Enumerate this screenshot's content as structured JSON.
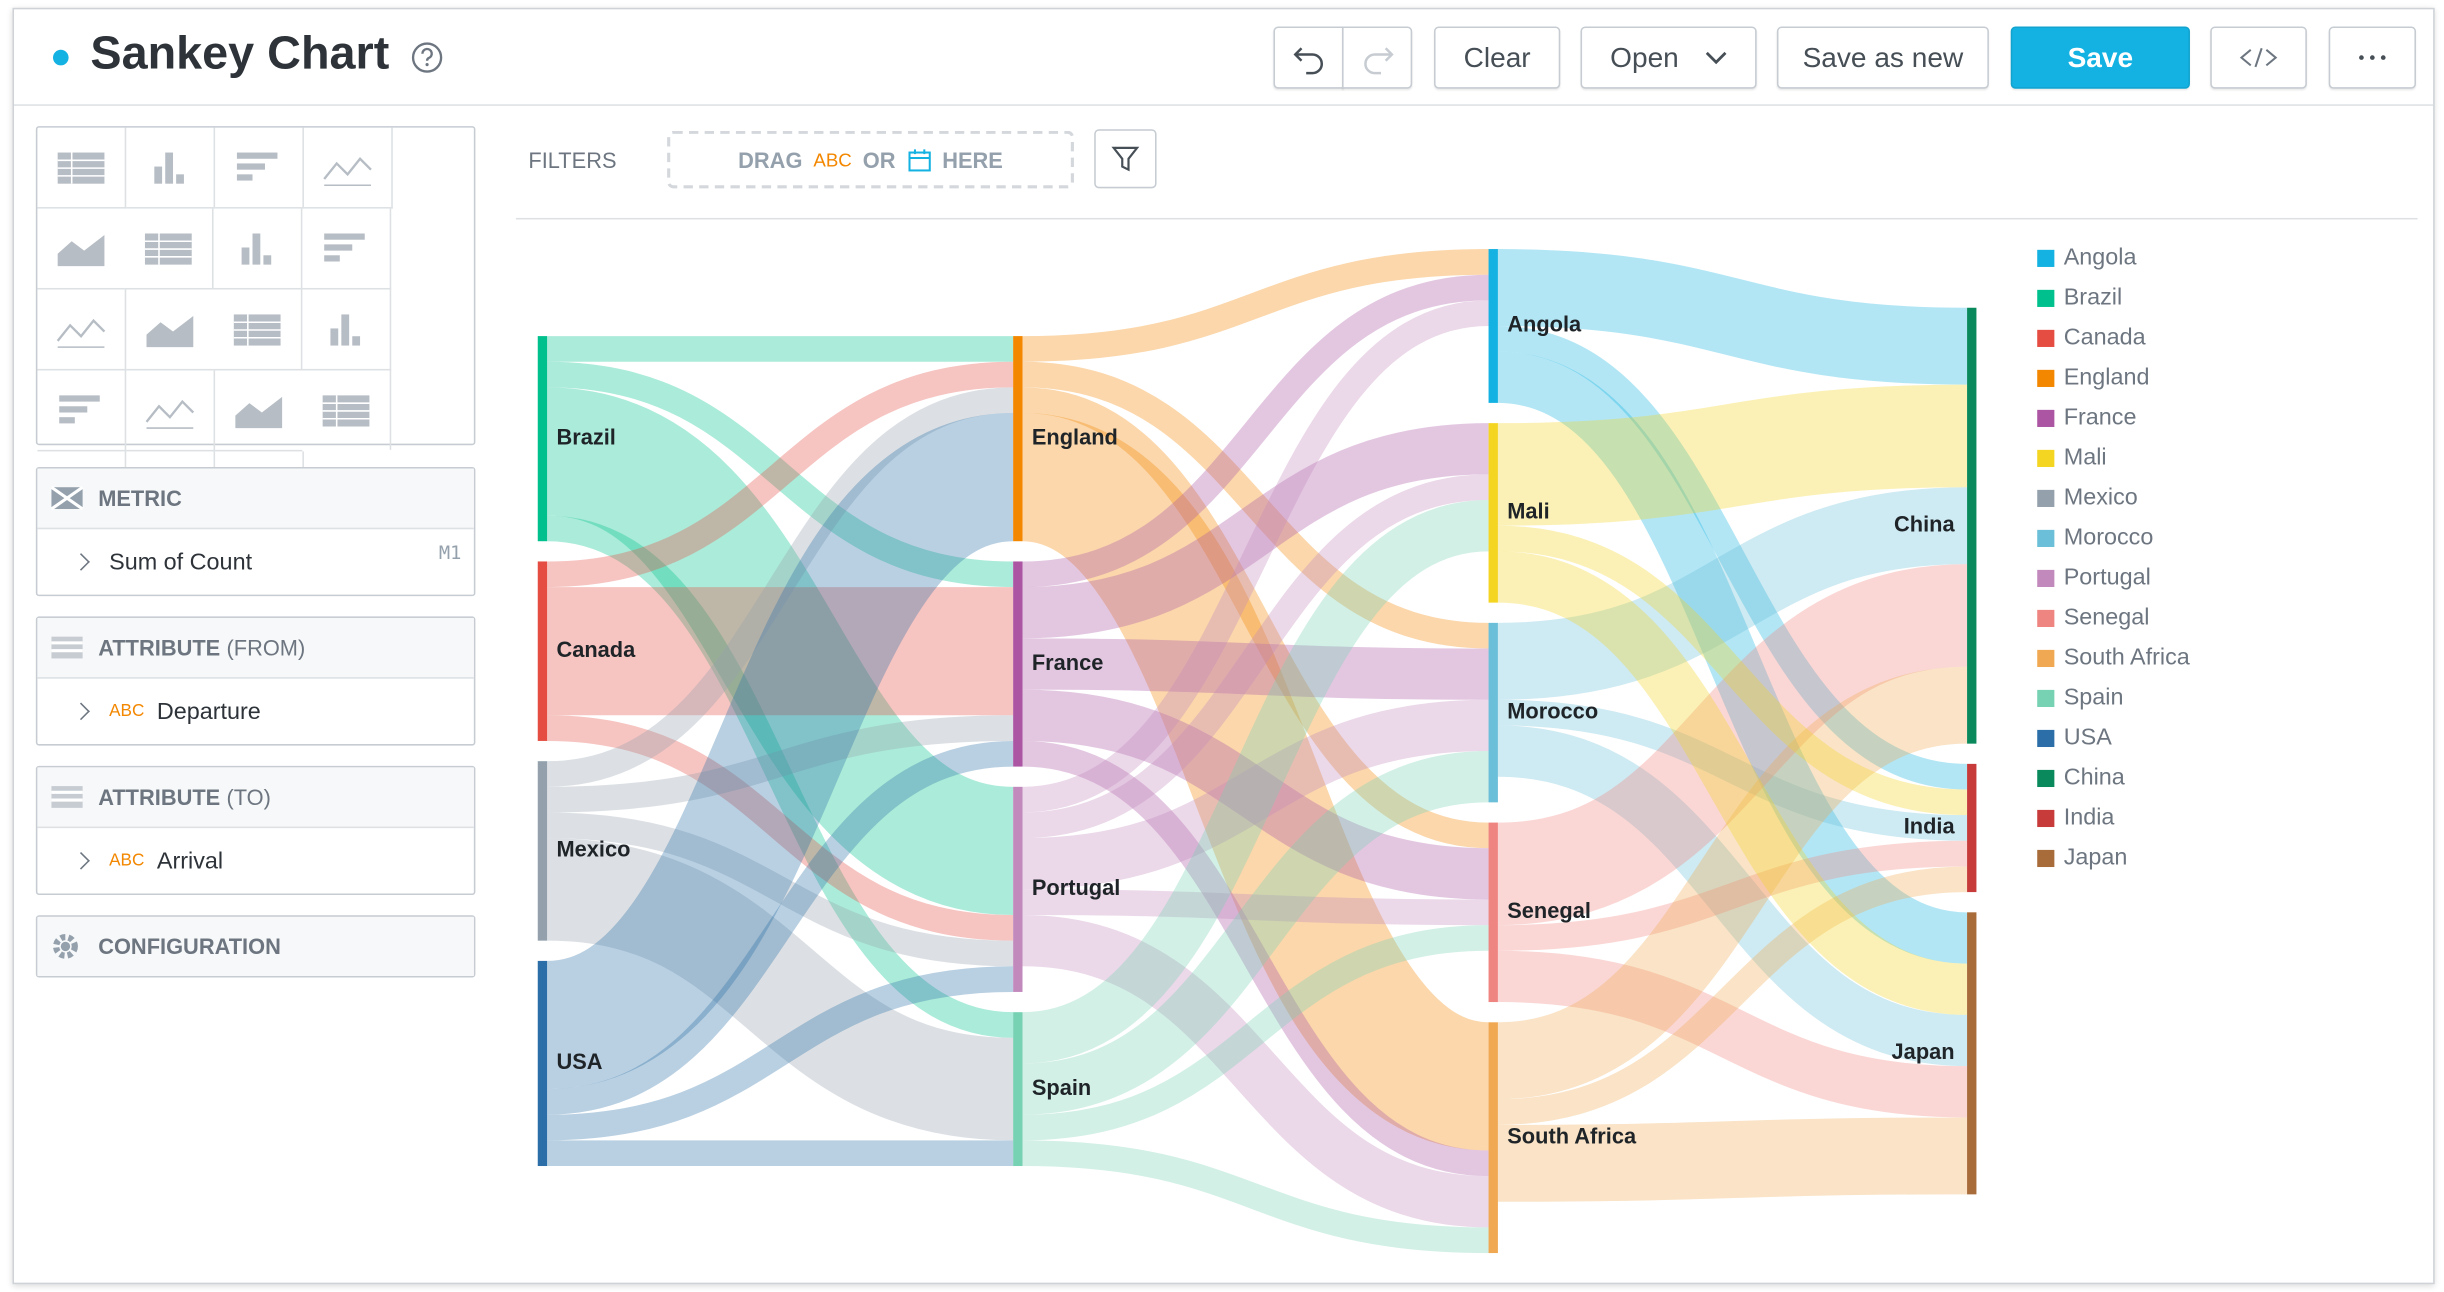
{
  "header": {
    "title": "Sankey Chart",
    "buttons": {
      "clear": "Clear",
      "open": "Open",
      "save_as_new": "Save as new",
      "save": "Save"
    }
  },
  "sidebar": {
    "metric": {
      "title": "METRIC",
      "item": "Sum of Count",
      "tag": "M1"
    },
    "from": {
      "title": "ATTRIBUTE",
      "qualifier": "(FROM)",
      "type": "ABC",
      "item": "Departure"
    },
    "to": {
      "title": "ATTRIBUTE",
      "qualifier": "(TO)",
      "type": "ABC",
      "item": "Arrival"
    },
    "configuration": "CONFIGURATION"
  },
  "filters": {
    "label": "FILTERS",
    "drag": "DRAG",
    "abc": "ABC",
    "or": "OR",
    "here": "HERE"
  },
  "chart_data": {
    "type": "sankey",
    "nodes": [
      {
        "name": "Angola",
        "color": "#14b2e2"
      },
      {
        "name": "Brazil",
        "color": "#00c18d"
      },
      {
        "name": "Canada",
        "color": "#e54d42"
      },
      {
        "name": "England",
        "color": "#f38700"
      },
      {
        "name": "France",
        "color": "#ab55a3"
      },
      {
        "name": "Mali",
        "color": "#f4d521"
      },
      {
        "name": "Mexico",
        "color": "#94a1ad"
      },
      {
        "name": "Morocco",
        "color": "#6bbfd8"
      },
      {
        "name": "Portugal",
        "color": "#c289bd"
      },
      {
        "name": "Senegal",
        "color": "#ef8581"
      },
      {
        "name": "South Africa",
        "color": "#f0a952"
      },
      {
        "name": "Spain",
        "color": "#77d1b3"
      },
      {
        "name": "USA",
        "color": "#2c6fa8"
      },
      {
        "name": "China",
        "color": "#0a8a5c"
      },
      {
        "name": "India",
        "color": "#c73b3b"
      },
      {
        "name": "Japan",
        "color": "#a86b3a"
      }
    ],
    "links": [
      {
        "source": "Brazil",
        "target": "England",
        "value": 1
      },
      {
        "source": "Brazil",
        "target": "France",
        "value": 1
      },
      {
        "source": "Brazil",
        "target": "Portugal",
        "value": 5
      },
      {
        "source": "Brazil",
        "target": "Spain",
        "value": 1
      },
      {
        "source": "Canada",
        "target": "England",
        "value": 1
      },
      {
        "source": "Canada",
        "target": "France",
        "value": 5
      },
      {
        "source": "Canada",
        "target": "Portugal",
        "value": 1
      },
      {
        "source": "Mexico",
        "target": "England",
        "value": 1
      },
      {
        "source": "Mexico",
        "target": "France",
        "value": 1
      },
      {
        "source": "Mexico",
        "target": "Portugal",
        "value": 1
      },
      {
        "source": "Mexico",
        "target": "Spain",
        "value": 4
      },
      {
        "source": "USA",
        "target": "England",
        "value": 5
      },
      {
        "source": "USA",
        "target": "France",
        "value": 1
      },
      {
        "source": "USA",
        "target": "Portugal",
        "value": 1
      },
      {
        "source": "USA",
        "target": "Spain",
        "value": 1
      },
      {
        "source": "England",
        "target": "Angola",
        "value": 1
      },
      {
        "source": "England",
        "target": "Morocco",
        "value": 1
      },
      {
        "source": "England",
        "target": "Senegal",
        "value": 1
      },
      {
        "source": "England",
        "target": "South Africa",
        "value": 5
      },
      {
        "source": "France",
        "target": "Angola",
        "value": 1
      },
      {
        "source": "France",
        "target": "Morocco",
        "value": 2
      },
      {
        "source": "France",
        "target": "Senegal",
        "value": 2
      },
      {
        "source": "France",
        "target": "South Africa",
        "value": 1
      },
      {
        "source": "France",
        "target": "Mali",
        "value": 2
      },
      {
        "source": "Portugal",
        "target": "Angola",
        "value": 1
      },
      {
        "source": "Portugal",
        "target": "Morocco",
        "value": 2
      },
      {
        "source": "Portugal",
        "target": "Senegal",
        "value": 1
      },
      {
        "source": "Portugal",
        "target": "South Africa",
        "value": 2
      },
      {
        "source": "Portugal",
        "target": "Mali",
        "value": 1
      },
      {
        "source": "Spain",
        "target": "Morocco",
        "value": 2
      },
      {
        "source": "Spain",
        "target": "Senegal",
        "value": 1
      },
      {
        "source": "Spain",
        "target": "South Africa",
        "value": 1
      },
      {
        "source": "Spain",
        "target": "Mali",
        "value": 2
      },
      {
        "source": "Angola",
        "target": "China",
        "value": 3
      },
      {
        "source": "Angola",
        "target": "India",
        "value": 1
      },
      {
        "source": "Angola",
        "target": "Japan",
        "value": 2
      },
      {
        "source": "Morocco",
        "target": "China",
        "value": 3
      },
      {
        "source": "Morocco",
        "target": "India",
        "value": 1
      },
      {
        "source": "Morocco",
        "target": "Japan",
        "value": 2
      },
      {
        "source": "Senegal",
        "target": "China",
        "value": 4
      },
      {
        "source": "Senegal",
        "target": "India",
        "value": 1
      },
      {
        "source": "Senegal",
        "target": "Japan",
        "value": 2
      },
      {
        "source": "South Africa",
        "target": "China",
        "value": 3
      },
      {
        "source": "South Africa",
        "target": "India",
        "value": 1
      },
      {
        "source": "South Africa",
        "target": "Japan",
        "value": 3
      },
      {
        "source": "Mali",
        "target": "China",
        "value": 4
      },
      {
        "source": "Mali",
        "target": "India",
        "value": 1
      },
      {
        "source": "Mali",
        "target": "Japan",
        "value": 2
      }
    ]
  }
}
